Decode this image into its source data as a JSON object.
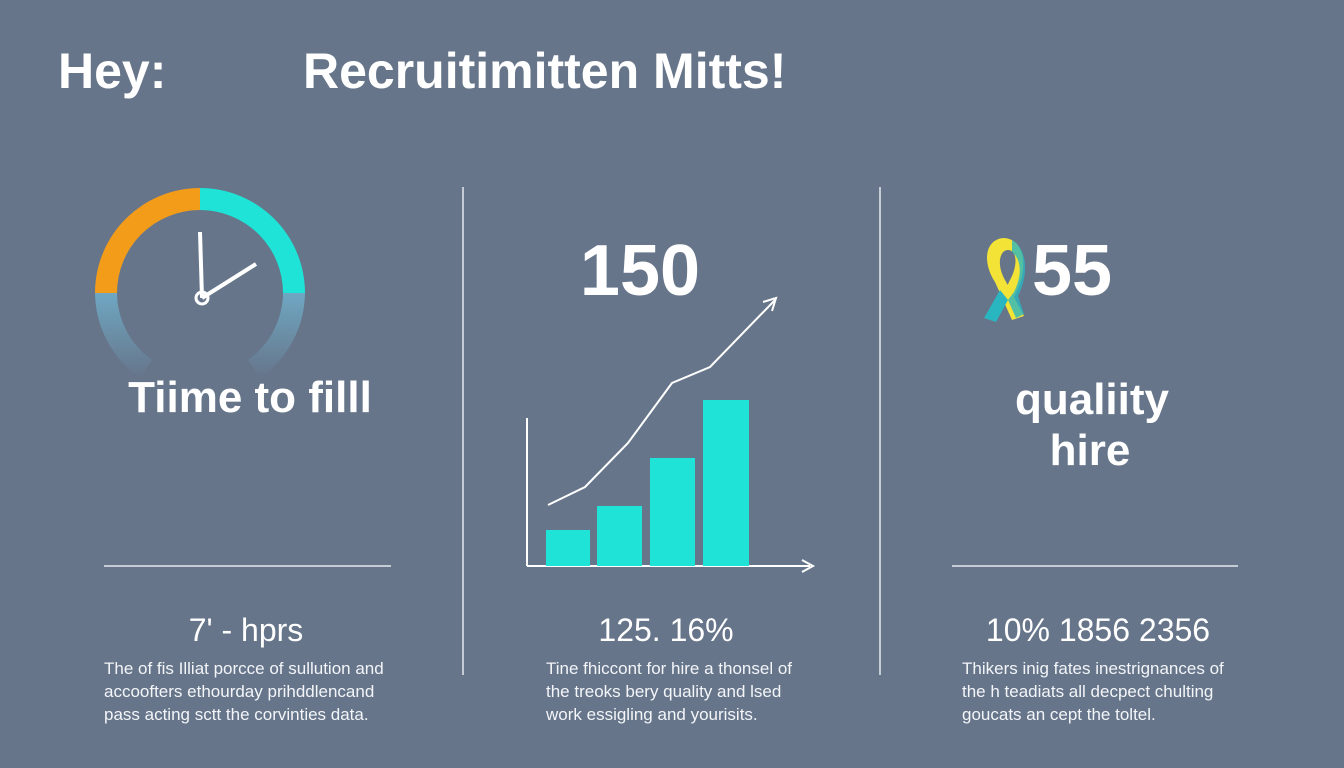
{
  "header": {
    "greeting": "Hey:",
    "title": "Recruitimitten Mitts!"
  },
  "panels": [
    {
      "label": [
        "Tiime to filll"
      ],
      "stat": "7' - hprs",
      "description": [
        "The of fis Illiat porcce of sullution and",
        "accoofters ethourday prihddlencand",
        "pass acting sctt the corvinties data."
      ]
    },
    {
      "big_number": "150",
      "stat": "125. 16%",
      "description": [
        "Tine fhiccont for hire a thonsel of",
        "the treoks bery quality and lsed",
        "work essigling and yourisits."
      ]
    },
    {
      "big_number": "55",
      "label": [
        "qualiity",
        "hire"
      ],
      "stat": "10% 1856 2356",
      "description": [
        "Thikers inig fates inestrignances  of",
        "the h teadiats all decpect chulting",
        "goucats an cept the toltel."
      ]
    }
  ]
}
